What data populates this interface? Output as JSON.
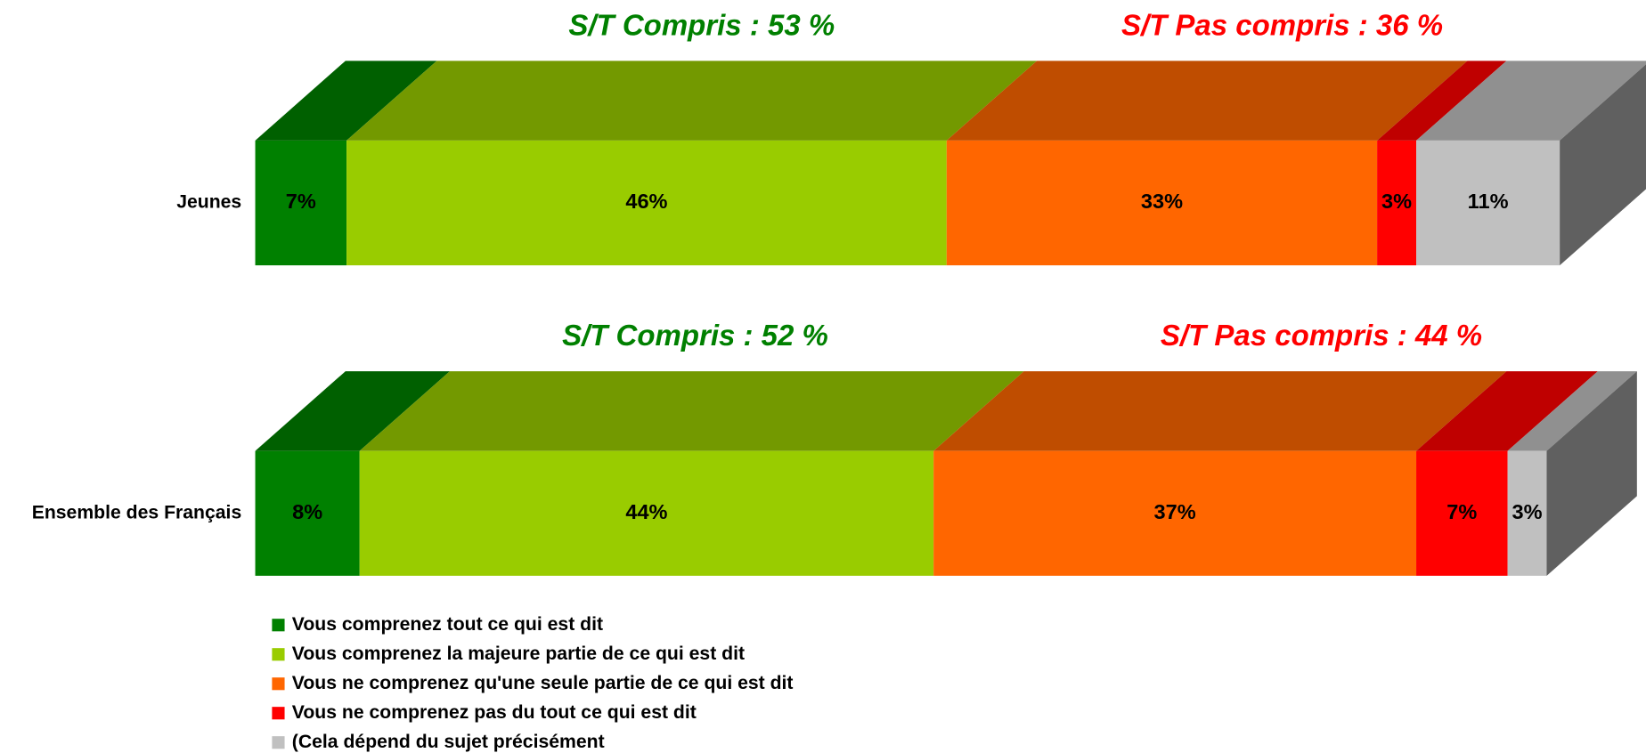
{
  "chart_data": {
    "type": "bar",
    "orientation": "horizontal",
    "stacked": true,
    "categories": [
      "Jeunes",
      "Ensemble des Français"
    ],
    "xlim": [
      0,
      100
    ],
    "series": [
      {
        "name": "Vous comprenez tout ce qui est dit",
        "color": "#008000",
        "values": [
          7,
          8
        ],
        "value_labels": [
          "7%",
          "8%"
        ]
      },
      {
        "name": "Vous comprenez la majeure partie de ce qui est dit",
        "color": "#99cc00",
        "values": [
          46,
          44
        ],
        "value_labels": [
          "46%",
          "44%"
        ]
      },
      {
        "name": "Vous ne comprenez qu'une seule partie de ce qui est dit",
        "color": "#ff6600",
        "values": [
          33,
          37
        ],
        "value_labels": [
          "33%",
          "37%"
        ]
      },
      {
        "name": "Vous ne comprenez pas du tout ce qui est dit",
        "color": "#ff0000",
        "values": [
          3,
          7
        ],
        "value_labels": [
          "3%",
          "7%"
        ]
      },
      {
        "name": "(Cela dépend du sujet précisément",
        "color": "#c0c0c0",
        "values": [
          11,
          3
        ],
        "value_labels": [
          "11%",
          "3%"
        ]
      }
    ],
    "annotations": [
      [
        "S/T Compris : 53 %",
        "S/T Pas compris : 36 %"
      ],
      [
        "S/T Compris : 52 %",
        "S/T Pas compris : 44 %"
      ]
    ],
    "annotation_colors": [
      "#008000",
      "#ff0000"
    ],
    "legend": "bottom-left"
  }
}
